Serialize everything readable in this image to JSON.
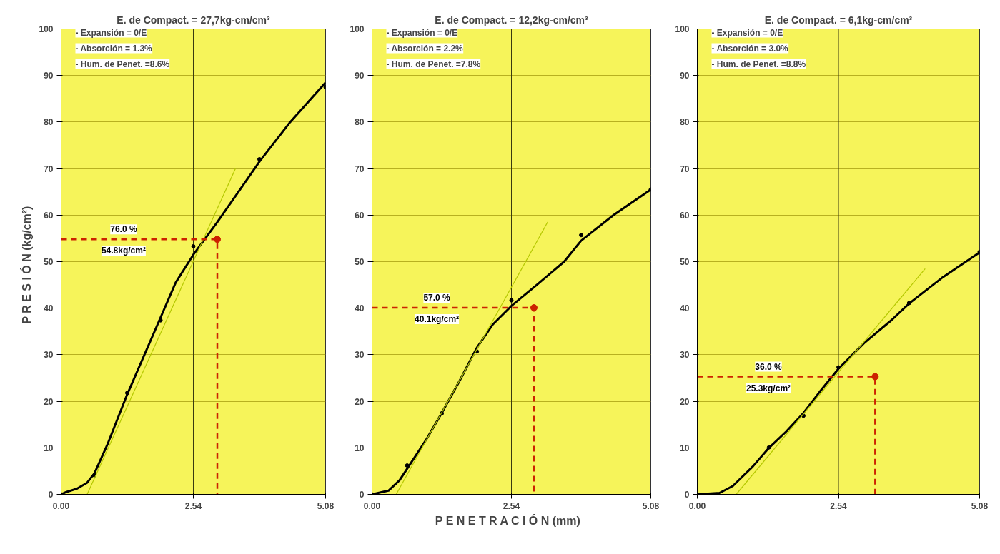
{
  "chart_data": [
    {
      "type": "line",
      "title": "E. de Compact. = 27,7kg-cm/cm³",
      "ylabel": "P R E S I Ó N   (kg/cm²)",
      "xlim": [
        0,
        5.08
      ],
      "xticks": [
        {
          "value": 0,
          "label": "0.00"
        },
        {
          "value": 2.54,
          "label": "2.54"
        },
        {
          "value": 5.08,
          "label": "5.08"
        }
      ],
      "ylim": [
        0,
        100
      ],
      "yticks": [
        0,
        10,
        20,
        30,
        40,
        50,
        60,
        70,
        80,
        90,
        100
      ],
      "grid": "y",
      "annotations": [
        "- Expansión = 0/E",
        "- Absorción = 1.3%",
        "- Hum. de Penet. =8.6%",
        "76.0 %",
        "54.8kg/cm²"
      ],
      "ref_lines": [
        {
          "axis": "x",
          "value": 2.54,
          "color": "#3a3a10"
        }
      ],
      "series": [
        {
          "type": "line",
          "color": "#000000",
          "x": [
            0,
            0.1,
            0.3,
            0.5,
            0.64,
            0.9,
            1.27,
            1.6,
            1.91,
            2.2,
            2.54,
            3.0,
            3.5,
            3.81,
            4.4,
            5.08
          ],
          "values": [
            0,
            0.5,
            1.2,
            2.5,
            4.5,
            11,
            21.5,
            30,
            38,
            45.5,
            51.5,
            58.5,
            66.5,
            71.5,
            80,
            88.5
          ]
        },
        {
          "type": "scatter",
          "color": "#000000",
          "marker": "circle",
          "x": [
            0,
            0.64,
            1.27,
            1.91,
            2.54,
            3.81,
            5.08
          ],
          "values": [
            0,
            4.1,
            21.8,
            37.4,
            53.3,
            72,
            87.5
          ]
        },
        {
          "type": "line",
          "color": "#b5c800",
          "x": [
            0.5,
            3.35
          ],
          "values": [
            0,
            70
          ]
        },
        {
          "type": "line",
          "color": "#cc2200",
          "line_style": "dashed",
          "x": [
            0,
            3.0,
            3.0
          ],
          "values": [
            54.8,
            54.8,
            0
          ]
        },
        {
          "type": "scatter",
          "color": "#cc2200",
          "marker": "circle",
          "x": [
            3.0
          ],
          "values": [
            54.8
          ]
        }
      ]
    },
    {
      "type": "line",
      "title": "E. de Compact. = 12,2kg-cm/cm³",
      "xlabel": "P E N E T R A C I Ó N   (mm)",
      "xlim": [
        0,
        5.08
      ],
      "xticks": [
        {
          "value": 0,
          "label": "0.00"
        },
        {
          "value": 2.54,
          "label": "2.54"
        },
        {
          "value": 5.08,
          "label": "5.08"
        }
      ],
      "ylim": [
        0,
        100
      ],
      "yticks": [
        0,
        10,
        20,
        30,
        40,
        50,
        60,
        70,
        80,
        90,
        100
      ],
      "grid": "y",
      "annotations": [
        "- Expansión = 0/E",
        "- Absorción = 2.2%",
        "- Hum. de Penet. =7.8%",
        "57.0 %",
        "40.1kg/cm²"
      ],
      "ref_lines": [
        {
          "axis": "x",
          "value": 2.54,
          "color": "#3a3a10"
        }
      ],
      "series": [
        {
          "type": "line",
          "color": "#000000",
          "x": [
            0,
            0.3,
            0.5,
            0.64,
            1.0,
            1.27,
            1.6,
            1.91,
            2.2,
            2.54,
            3.0,
            3.5,
            3.81,
            4.4,
            5.08
          ],
          "values": [
            0,
            0.8,
            3,
            5.5,
            12,
            17.5,
            24.5,
            31.5,
            36.5,
            40.5,
            45,
            50,
            54.5,
            60,
            65.5
          ]
        },
        {
          "type": "scatter",
          "color": "#000000",
          "marker": "circle",
          "x": [
            0,
            0.64,
            1.27,
            1.91,
            2.54,
            3.81,
            5.08
          ],
          "values": [
            0,
            6.2,
            17.4,
            30.7,
            41.7,
            55.7,
            65.5
          ]
        },
        {
          "type": "line",
          "color": "#b5c800",
          "x": [
            0.44,
            3.2
          ],
          "values": [
            0,
            58.5
          ]
        },
        {
          "type": "line",
          "color": "#cc2200",
          "line_style": "dashed",
          "x": [
            0,
            2.95,
            2.95
          ],
          "values": [
            40.1,
            40.1,
            0
          ]
        },
        {
          "type": "scatter",
          "color": "#cc2200",
          "marker": "circle",
          "x": [
            2.95
          ],
          "values": [
            40.1
          ]
        }
      ]
    },
    {
      "type": "line",
      "title": "E. de Compact. = 6,1kg-cm/cm³",
      "xlim": [
        0,
        5.08
      ],
      "xticks": [
        {
          "value": 0,
          "label": "0.00"
        },
        {
          "value": 2.54,
          "label": "2.54"
        },
        {
          "value": 5.08,
          "label": "5.08"
        }
      ],
      "ylim": [
        0,
        100
      ],
      "yticks": [
        0,
        10,
        20,
        30,
        40,
        50,
        60,
        70,
        80,
        90,
        100
      ],
      "grid": "y",
      "annotations": [
        "- Expansión = 0/E",
        "- Absorción = 3.0%",
        "- Hum. de Penet. =8.8%",
        "36.0 %",
        "25.3kg/cm²"
      ],
      "ref_lines": [
        {
          "axis": "x",
          "value": 2.54,
          "color": "#3a3a10"
        }
      ],
      "series": [
        {
          "type": "line",
          "color": "#000000",
          "x": [
            0,
            0.4,
            0.64,
            1.0,
            1.29,
            1.6,
            1.91,
            2.2,
            2.54,
            3.0,
            3.5,
            3.81,
            4.4,
            5.08
          ],
          "values": [
            0,
            0.3,
            1.8,
            6,
            10,
            13.5,
            17.5,
            22,
            27,
            32.5,
            37.5,
            41,
            46.5,
            52
          ]
        },
        {
          "type": "scatter",
          "color": "#000000",
          "marker": "circle",
          "x": [
            0,
            1.29,
            1.91,
            2.54,
            3.81,
            5.08
          ],
          "values": [
            0,
            10.1,
            16.9,
            27.3,
            41.1,
            52.1
          ]
        },
        {
          "type": "line",
          "color": "#b5c800",
          "x": [
            0.7,
            4.1
          ],
          "values": [
            0,
            48.5
          ]
        },
        {
          "type": "line",
          "color": "#cc2200",
          "line_style": "dashed",
          "x": [
            0,
            3.2,
            3.2
          ],
          "values": [
            25.3,
            25.3,
            0
          ]
        },
        {
          "type": "scatter",
          "color": "#cc2200",
          "marker": "circle",
          "x": [
            3.2
          ],
          "values": [
            25.3
          ]
        }
      ]
    }
  ]
}
